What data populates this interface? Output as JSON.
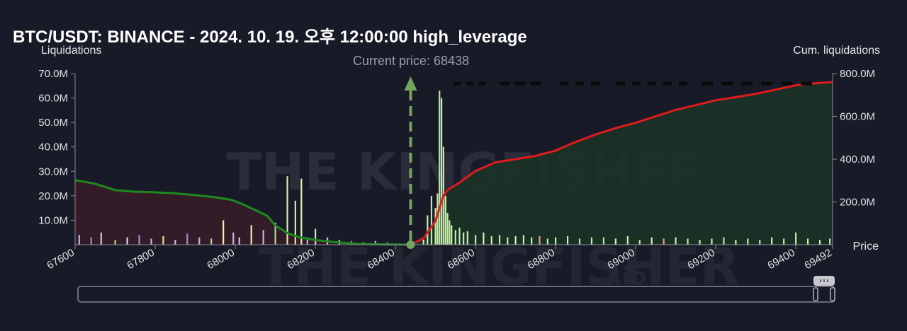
{
  "chart_data": {
    "type": "bar",
    "title": "BTC/USDT: BINANCE - 2024. 10. 19. 오후 12:00:00 high_leverage",
    "ylabel_left": "Liquidations",
    "ylabel_right": "Cum. liquidations",
    "xlabel": "Price",
    "current_price_label": "Current price: 68438",
    "current_price": 68438,
    "xlim": [
      67600,
      69492
    ],
    "ylim_left": [
      0,
      70000000
    ],
    "ylim_right": [
      0,
      800000000
    ],
    "x_ticks": [
      67600,
      67800,
      68000,
      68200,
      68400,
      68600,
      68800,
      69000,
      69200,
      69400,
      69492
    ],
    "x_tick_labels": [
      "67600",
      "67800",
      "68000",
      "68200",
      "68400",
      "68600",
      "68800",
      "69000",
      "69200",
      "69400",
      "69492"
    ],
    "y_left_ticks": [
      10000000,
      20000000,
      30000000,
      40000000,
      50000000,
      60000000,
      70000000
    ],
    "y_left_tick_labels": [
      "10.0M",
      "20.0M",
      "30.0M",
      "40.0M",
      "50.0M",
      "60.0M",
      "70.0M"
    ],
    "y_right_ticks": [
      200000000,
      400000000,
      600000000,
      800000000
    ],
    "y_right_tick_labels": [
      "200.0M",
      "400.0M",
      "600.0M",
      "800.0M"
    ],
    "grid": false,
    "cumulative_short_series": {
      "color": "#1e8a1e",
      "x": [
        67600,
        67650,
        67700,
        67750,
        67800,
        67850,
        67900,
        67950,
        67990,
        68020,
        68050,
        68080,
        68100,
        68130,
        68160,
        68200,
        68250,
        68300,
        68350,
        68400,
        68438
      ],
      "y": [
        302000000,
        285000000,
        255000000,
        248000000,
        245000000,
        240000000,
        232000000,
        222000000,
        210000000,
        188000000,
        162000000,
        135000000,
        90000000,
        55000000,
        35000000,
        22000000,
        12000000,
        5000000,
        2000000,
        1000000,
        0
      ]
    },
    "cumulative_long_series": {
      "color": "#e01b1b",
      "x": [
        68438,
        68470,
        68500,
        68520,
        68530,
        68560,
        68600,
        68650,
        68700,
        68750,
        68800,
        68850,
        68900,
        68950,
        69000,
        69100,
        69200,
        69300,
        69400,
        69450,
        69492
      ],
      "y": [
        0,
        30000000,
        110000000,
        230000000,
        255000000,
        290000000,
        345000000,
        385000000,
        400000000,
        415000000,
        440000000,
        480000000,
        515000000,
        545000000,
        570000000,
        630000000,
        675000000,
        705000000,
        745000000,
        755000000,
        760000000
      ]
    },
    "bars": {
      "x": [
        67610,
        67640,
        67665,
        67700,
        67730,
        67760,
        67790,
        67820,
        67850,
        67880,
        67910,
        67940,
        67970,
        67995,
        68010,
        68040,
        68070,
        68100,
        68130,
        68150,
        68165,
        68180,
        68200,
        68230,
        68260,
        68290,
        68320,
        68350,
        68380,
        68410,
        68470,
        68480,
        68490,
        68500,
        68505,
        68510,
        68515,
        68520,
        68525,
        68530,
        68535,
        68540,
        68550,
        68560,
        68570,
        68580,
        68600,
        68620,
        68640,
        68660,
        68680,
        68700,
        68720,
        68740,
        68760,
        68780,
        68800,
        68830,
        68860,
        68890,
        68920,
        68950,
        68980,
        69010,
        69040,
        69070,
        69100,
        69130,
        69160,
        69190,
        69220,
        69250,
        69280,
        69310,
        69340,
        69370,
        69400,
        69430,
        69460,
        69485
      ],
      "values": [
        4000000,
        3000000,
        5000000,
        2000000,
        3000000,
        4000000,
        2500000,
        3500000,
        2000000,
        4500000,
        3000000,
        2500000,
        10000000,
        5000000,
        3000000,
        8000000,
        6000000,
        9000000,
        28000000,
        18000000,
        27000000,
        3000000,
        6500000,
        3000000,
        2000000,
        1500000,
        1000000,
        1500000,
        1000000,
        500000,
        2000000,
        12000000,
        20000000,
        15000000,
        21000000,
        63000000,
        60000000,
        40000000,
        20000000,
        13000000,
        10000000,
        8000000,
        6000000,
        7000000,
        5000000,
        5500000,
        4000000,
        5000000,
        3500000,
        4000000,
        3000000,
        3500000,
        4000000,
        3000000,
        3500000,
        2500000,
        3000000,
        3500000,
        2500000,
        3000000,
        3000000,
        2500000,
        3500000,
        2000000,
        3000000,
        2500000,
        3000000,
        2500000,
        2000000,
        2500000,
        3000000,
        2000000,
        2500000,
        2000000,
        3000000,
        2500000,
        5000000,
        2500000,
        2000000,
        2500000
      ],
      "colors": [
        "#b9b6e6",
        "#9c8fd6",
        "#c9c2ef",
        "#a8e08a",
        "#d6d3f2",
        "#9c8fd6",
        "#b9b6e6",
        "#e8e28a",
        "#c9c2ef",
        "#9c8fd6",
        "#b9b6e6",
        "#a8e08a",
        "#f0ef9a",
        "#b9b6e6",
        "#c9c2ef",
        "#f0ef9a",
        "#b9b6e6",
        "#a8e08a",
        "#d8f0a0",
        "#c8f09a",
        "#d8f0a0",
        "#b9b6e6",
        "#b6ef9a",
        "#c9c2ef",
        "#b9b6e6",
        "#9c8fd6",
        "#c9c2ef",
        "#b9b6e6",
        "#9c8fd6",
        "#b9b6e6",
        "#d8f0a0",
        "#c8f09a",
        "#b6ef9a",
        "#d8f0a0",
        "#c8f09a",
        "#b6ef9a",
        "#c8f09a",
        "#b6ef9a",
        "#d8f0a0",
        "#c8f09a",
        "#b6ef9a",
        "#d8f0a0",
        "#c8f09a",
        "#b6ef9a",
        "#d8f0a0",
        "#c8f09a",
        "#b6ef9a",
        "#d8f0a0",
        "#e8e28a",
        "#b6ef9a",
        "#c8f09a",
        "#d8f0a0",
        "#b6ef9a",
        "#c8f09a",
        "#e8a07a",
        "#b6ef9a",
        "#c8f09a",
        "#d8f0a0",
        "#b6ef9a",
        "#c8f09a",
        "#b6ef9a",
        "#d8f0a0",
        "#c8f09a",
        "#b6ef9a",
        "#d8f0a0",
        "#e8a07a",
        "#c8f09a",
        "#b6ef9a",
        "#d8f0a0",
        "#c8f09a",
        "#b6ef9a",
        "#d8f0a0",
        "#c8f09a",
        "#b6ef9a",
        "#d8f0a0",
        "#c8f09a",
        "#b6ef9a",
        "#d8f0a0",
        "#c8f09a",
        "#b6ef9a"
      ]
    }
  },
  "watermark": {
    "text1": "THE KINGFISHER",
    "text2": ".io"
  },
  "range_slider": {
    "handle_icon": "grip-icon"
  }
}
